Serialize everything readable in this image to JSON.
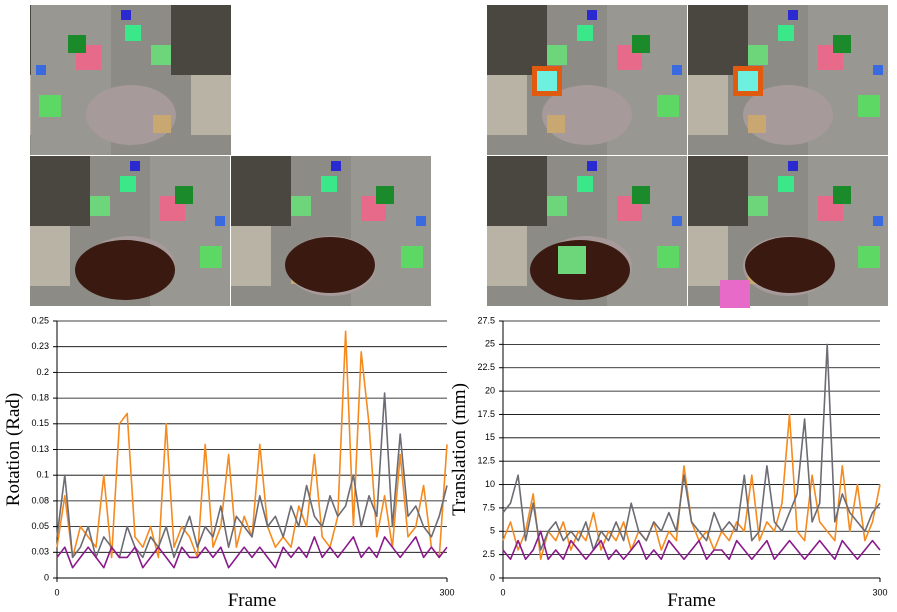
{
  "chart_data": [
    {
      "type": "line",
      "y_label": "Rotation (Rad)",
      "x_label": "Frame",
      "xlim": [
        0,
        300
      ],
      "xticks": [
        0,
        300
      ],
      "ylim": [
        0,
        0.25
      ],
      "yticks": [
        0,
        {
          "value": 0.025,
          "label": "0.03"
        },
        0.05,
        {
          "value": 0.075,
          "label": "0.08"
        },
        0.1,
        {
          "value": 0.125,
          "label": "0.13"
        },
        0.15,
        {
          "value": 0.175,
          "label": "0.18"
        },
        0.2,
        {
          "value": 0.225,
          "label": "0.23"
        },
        0.25
      ],
      "grid": true,
      "x": [
        0,
        6,
        12,
        18,
        24,
        30,
        36,
        42,
        48,
        54,
        60,
        66,
        72,
        78,
        84,
        90,
        96,
        102,
        108,
        114,
        120,
        126,
        132,
        138,
        144,
        150,
        156,
        162,
        168,
        174,
        180,
        186,
        192,
        198,
        204,
        210,
        216,
        222,
        228,
        234,
        240,
        246,
        252,
        258,
        264,
        270,
        276,
        282,
        288,
        294,
        300
      ],
      "series": [
        {
          "color": "#f58a1f",
          "values": [
            0.03,
            0.08,
            0.02,
            0.05,
            0.04,
            0.03,
            0.1,
            0.02,
            0.15,
            0.16,
            0.04,
            0.03,
            0.05,
            0.02,
            0.15,
            0.03,
            0.05,
            0.04,
            0.02,
            0.13,
            0.03,
            0.05,
            0.12,
            0.03,
            0.06,
            0.04,
            0.13,
            0.05,
            0.03,
            0.04,
            0.03,
            0.07,
            0.05,
            0.12,
            0.04,
            0.03,
            0.06,
            0.24,
            0.05,
            0.22,
            0.15,
            0.04,
            0.08,
            0.03,
            0.12,
            0.04,
            0.05,
            0.09,
            0.03,
            0.02,
            0.13
          ]
        },
        {
          "color": "#6c6c74",
          "values": [
            0.04,
            0.1,
            0.02,
            0.03,
            0.05,
            0.02,
            0.04,
            0.03,
            0.02,
            0.05,
            0.03,
            0.02,
            0.04,
            0.03,
            0.05,
            0.02,
            0.04,
            0.06,
            0.03,
            0.05,
            0.04,
            0.07,
            0.03,
            0.06,
            0.05,
            0.04,
            0.08,
            0.05,
            0.06,
            0.04,
            0.07,
            0.05,
            0.09,
            0.06,
            0.05,
            0.08,
            0.06,
            0.07,
            0.1,
            0.05,
            0.08,
            0.06,
            0.18,
            0.05,
            0.14,
            0.06,
            0.07,
            0.05,
            0.04,
            0.06,
            0.09
          ]
        },
        {
          "color": "#8a1a8c",
          "values": [
            0.02,
            0.03,
            0.01,
            0.02,
            0.03,
            0.02,
            0.01,
            0.03,
            0.02,
            0.02,
            0.03,
            0.01,
            0.02,
            0.03,
            0.02,
            0.01,
            0.03,
            0.02,
            0.02,
            0.03,
            0.02,
            0.03,
            0.01,
            0.02,
            0.03,
            0.02,
            0.03,
            0.02,
            0.01,
            0.03,
            0.02,
            0.03,
            0.02,
            0.04,
            0.02,
            0.03,
            0.02,
            0.03,
            0.04,
            0.02,
            0.03,
            0.02,
            0.04,
            0.03,
            0.02,
            0.03,
            0.04,
            0.02,
            0.03,
            0.02,
            0.03
          ]
        }
      ]
    },
    {
      "type": "line",
      "y_label": "Translation (mm)",
      "x_label": "Frame",
      "xlim": [
        0,
        300
      ],
      "xticks": [
        0,
        300
      ],
      "ylim": [
        0,
        27.5
      ],
      "yticks": [
        0,
        2.5,
        5,
        7.5,
        10,
        12.5,
        15,
        17.5,
        20,
        22.5,
        25,
        27.5
      ],
      "grid": true,
      "x": [
        0,
        6,
        12,
        18,
        24,
        30,
        36,
        42,
        48,
        54,
        60,
        66,
        72,
        78,
        84,
        90,
        96,
        102,
        108,
        114,
        120,
        126,
        132,
        138,
        144,
        150,
        156,
        162,
        168,
        174,
        180,
        186,
        192,
        198,
        204,
        210,
        216,
        222,
        228,
        234,
        240,
        246,
        252,
        258,
        264,
        270,
        276,
        282,
        288,
        294,
        300
      ],
      "series": [
        {
          "color": "#f58a1f",
          "values": [
            4,
            6,
            3,
            5,
            9,
            2,
            5,
            4,
            6,
            3,
            5,
            4,
            7,
            3,
            5,
            4,
            6,
            3,
            5,
            4,
            6,
            3,
            5,
            4,
            12,
            6,
            4,
            5,
            3,
            5,
            4,
            6,
            5,
            11,
            4,
            6,
            5,
            8,
            17.5,
            5,
            4,
            11,
            6,
            5,
            4,
            12,
            5,
            10,
            4,
            6,
            10
          ]
        },
        {
          "color": "#6c6c74",
          "values": [
            7,
            8,
            11,
            4,
            8,
            3,
            5,
            6,
            4,
            5,
            4,
            6,
            3,
            5,
            4,
            6,
            4,
            8,
            5,
            4,
            6,
            5,
            7,
            5,
            11,
            6,
            5,
            4,
            7,
            5,
            6,
            5,
            11,
            4,
            5,
            12,
            6,
            5,
            7,
            9,
            17,
            6,
            8,
            25,
            6,
            9,
            7,
            6,
            5,
            7,
            8
          ]
        },
        {
          "color": "#8a1a8c",
          "values": [
            3,
            2,
            4,
            2,
            3,
            5,
            2,
            3,
            2,
            4,
            3,
            2,
            3,
            4,
            2,
            3,
            2,
            3,
            4,
            2,
            3,
            2,
            4,
            3,
            2,
            3,
            4,
            2,
            3,
            3,
            2,
            4,
            3,
            2,
            3,
            4,
            2,
            3,
            4,
            3,
            2,
            3,
            4,
            3,
            2,
            4,
            3,
            2,
            3,
            4,
            3
          ]
        }
      ]
    }
  ]
}
